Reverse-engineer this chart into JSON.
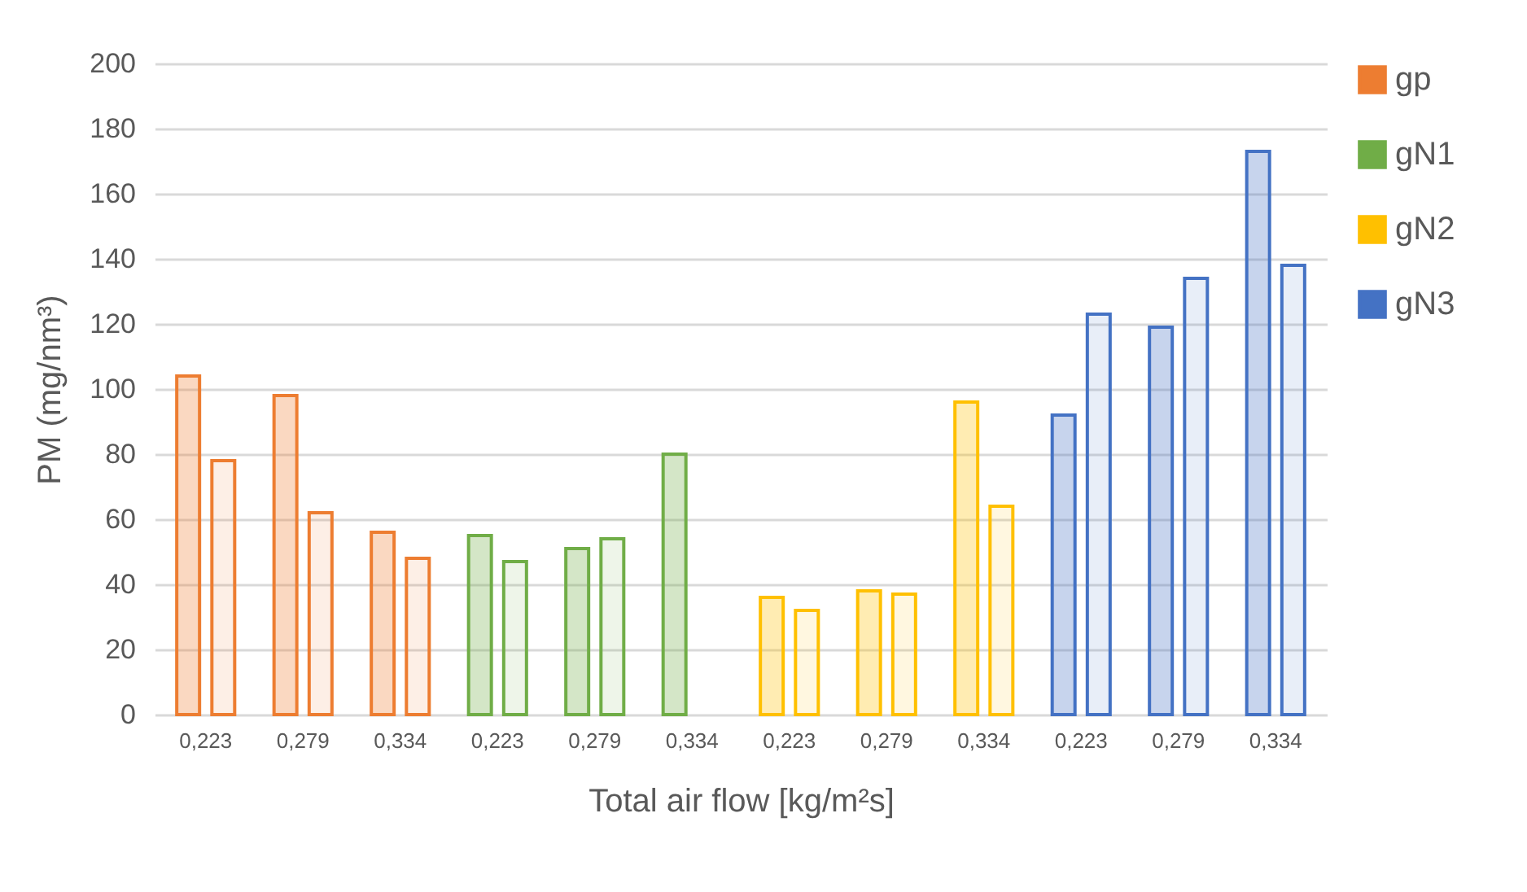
{
  "chart_data": {
    "type": "bar",
    "xlabel": "Total air flow [kg/m²s]",
    "ylabel": "PM (mg/nm³)",
    "categories": [
      "0,223",
      "0,279",
      "0,334",
      "0,223",
      "0,279",
      "0,334",
      "0,223",
      "0,279",
      "0,334",
      "0,223",
      "0,279",
      "0,334"
    ],
    "series": [
      {
        "name": "gp",
        "color": "#ed7d31",
        "values": [
          104,
          98,
          56,
          null,
          null,
          null,
          null,
          null,
          null,
          null,
          null,
          null
        ]
      },
      {
        "color": "#ed7d31",
        "values": [
          78,
          62,
          48,
          null,
          null,
          null,
          null,
          null,
          null,
          null,
          null,
          null
        ]
      },
      {
        "name": "gN1",
        "color": "#70ad47",
        "values": [
          null,
          null,
          null,
          55,
          51,
          80,
          null,
          null,
          null,
          null,
          null,
          null
        ]
      },
      {
        "color": "#70ad47",
        "values": [
          null,
          null,
          null,
          47,
          54,
          null,
          null,
          null,
          null,
          null,
          null,
          null
        ]
      },
      {
        "name": "gN2",
        "color": "#ffc000",
        "values": [
          null,
          null,
          null,
          null,
          null,
          null,
          36,
          38,
          96,
          null,
          null,
          null
        ]
      },
      {
        "color": "#ffc000",
        "values": [
          null,
          null,
          null,
          null,
          null,
          null,
          32,
          37,
          64,
          null,
          null,
          null
        ]
      },
      {
        "name": "gN3",
        "color": "#4472c4",
        "values": [
          null,
          null,
          null,
          null,
          null,
          null,
          null,
          null,
          null,
          92,
          119,
          173
        ]
      },
      {
        "color": "#4472c4",
        "values": [
          null,
          null,
          null,
          null,
          null,
          null,
          null,
          null,
          null,
          123,
          134,
          138
        ]
      }
    ],
    "ylim": [
      0,
      200
    ],
    "yticks": [
      0,
      20,
      40,
      60,
      80,
      100,
      120,
      140,
      160,
      180,
      200
    ],
    "grid": "y",
    "legend": "right"
  }
}
